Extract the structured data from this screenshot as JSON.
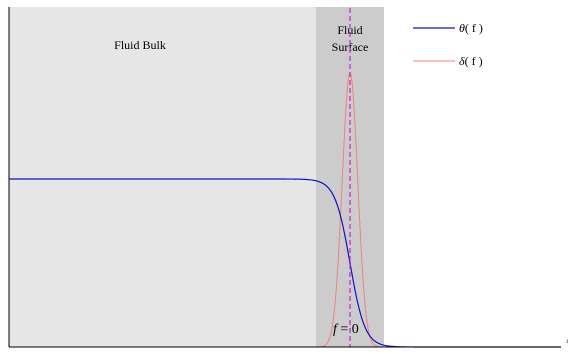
{
  "regions": {
    "bulk_label": "Fluid  Bulk",
    "surface_label_line1": "Fluid",
    "surface_label_line2": "Surface",
    "bulk_color": "#e6e6e6",
    "surface_color": "#cccccc"
  },
  "legend": {
    "theta_symbol": "θ",
    "theta_arg": "( f )",
    "delta_symbol": "δ",
    "delta_arg": "( f )"
  },
  "interface_label": "f = 0",
  "axis_tick_label": "1",
  "colors": {
    "theta": "#1111cc",
    "delta": "#f08080",
    "interface": "#cc22cc",
    "axis": "#000000"
  },
  "chart_data": {
    "type": "line",
    "series": [
      {
        "name": "θ(f)",
        "shape": "step",
        "level_before": 1,
        "level_after": 0,
        "transition_at": 0
      },
      {
        "name": "δ(f)",
        "shape": "peak",
        "center": 0
      }
    ],
    "interface_x": 0
  }
}
